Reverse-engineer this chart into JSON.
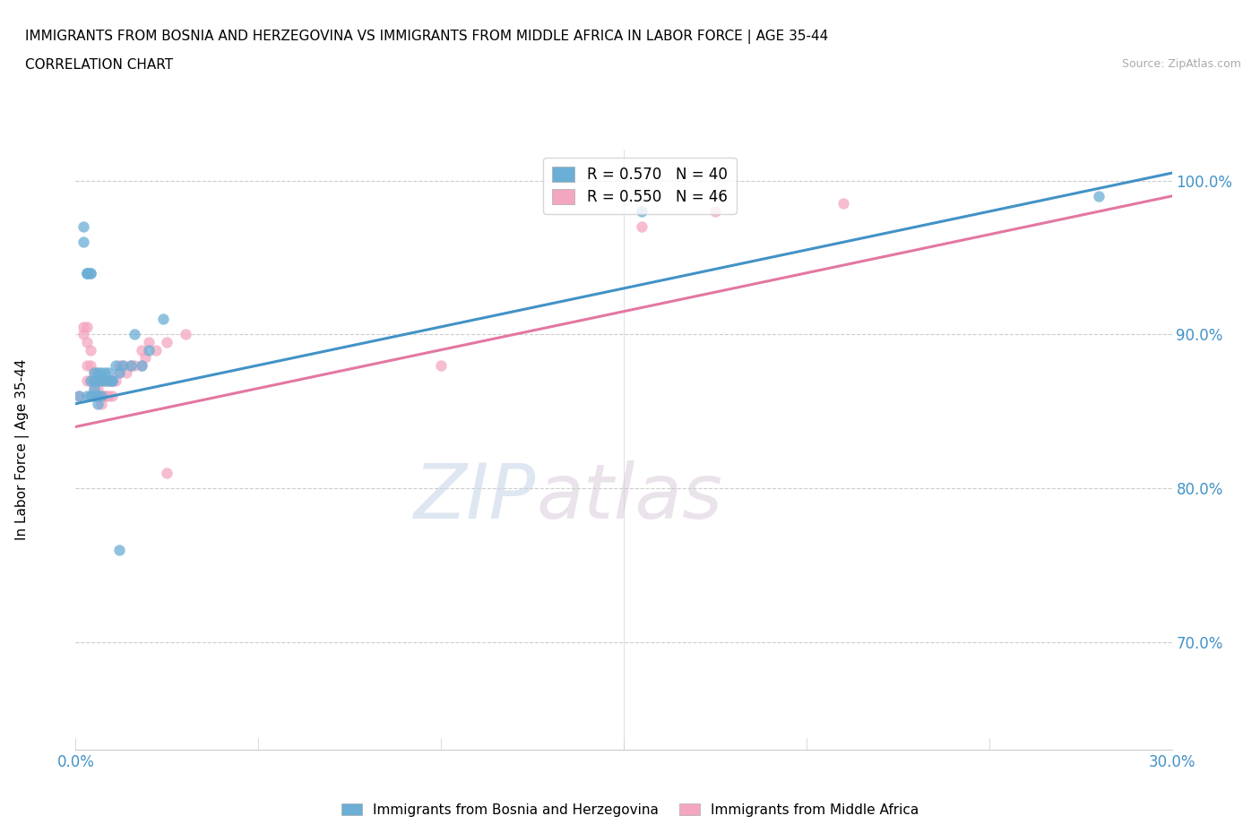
{
  "title_line1": "IMMIGRANTS FROM BOSNIA AND HERZEGOVINA VS IMMIGRANTS FROM MIDDLE AFRICA IN LABOR FORCE | AGE 35-44",
  "title_line2": "CORRELATION CHART",
  "source_text": "Source: ZipAtlas.com",
  "ylabel": "In Labor Force | Age 35-44",
  "xlim": [
    0.0,
    0.3
  ],
  "ylim": [
    0.63,
    1.02
  ],
  "xtick_labels": [
    "0.0%",
    "",
    "",
    "",
    "",
    "",
    "30.0%"
  ],
  "xtick_vals": [
    0.0,
    0.05,
    0.1,
    0.15,
    0.2,
    0.25,
    0.3
  ],
  "ytick_labels": [
    "70.0%",
    "80.0%",
    "90.0%",
    "100.0%"
  ],
  "ytick_vals": [
    0.7,
    0.8,
    0.9,
    1.0
  ],
  "color_bosnia": "#6baed6",
  "color_africa": "#f4a6c0",
  "trendline_color_bosnia": "#4292c6",
  "trendline_color_africa": "#e377a2",
  "R_bosnia": 0.57,
  "N_bosnia": 40,
  "R_africa": 0.55,
  "N_africa": 46,
  "watermark_zip": "ZIP",
  "watermark_atlas": "atlas",
  "bosnia_x": [
    0.001,
    0.002,
    0.002,
    0.003,
    0.003,
    0.003,
    0.004,
    0.004,
    0.004,
    0.005,
    0.005,
    0.005,
    0.006,
    0.006,
    0.006,
    0.007,
    0.007,
    0.008,
    0.008,
    0.009,
    0.01,
    0.01,
    0.011,
    0.012,
    0.013,
    0.015,
    0.016,
    0.018,
    0.02,
    0.024,
    0.003,
    0.004,
    0.005,
    0.006,
    0.007,
    0.009,
    0.012,
    0.135,
    0.155,
    0.28
  ],
  "bosnia_y": [
    0.86,
    0.97,
    0.96,
    0.94,
    0.94,
    0.94,
    0.94,
    0.94,
    0.87,
    0.875,
    0.87,
    0.86,
    0.875,
    0.87,
    0.86,
    0.875,
    0.87,
    0.875,
    0.87,
    0.875,
    0.87,
    0.87,
    0.88,
    0.875,
    0.88,
    0.88,
    0.9,
    0.88,
    0.89,
    0.91,
    0.86,
    0.86,
    0.865,
    0.855,
    0.86,
    0.87,
    0.76,
    0.99,
    0.98,
    0.99
  ],
  "africa_x": [
    0.001,
    0.002,
    0.002,
    0.003,
    0.003,
    0.003,
    0.004,
    0.004,
    0.004,
    0.005,
    0.005,
    0.005,
    0.006,
    0.006,
    0.006,
    0.007,
    0.007,
    0.007,
    0.008,
    0.008,
    0.009,
    0.009,
    0.01,
    0.01,
    0.011,
    0.012,
    0.013,
    0.014,
    0.015,
    0.016,
    0.018,
    0.019,
    0.02,
    0.022,
    0.025,
    0.03,
    0.1,
    0.155,
    0.175,
    0.21,
    0.003,
    0.004,
    0.008,
    0.012,
    0.018,
    0.025
  ],
  "africa_y": [
    0.86,
    0.9,
    0.905,
    0.905,
    0.895,
    0.88,
    0.89,
    0.88,
    0.87,
    0.875,
    0.87,
    0.865,
    0.875,
    0.865,
    0.86,
    0.87,
    0.86,
    0.855,
    0.87,
    0.86,
    0.87,
    0.86,
    0.87,
    0.86,
    0.87,
    0.875,
    0.88,
    0.875,
    0.88,
    0.88,
    0.89,
    0.885,
    0.895,
    0.89,
    0.895,
    0.9,
    0.88,
    0.97,
    0.98,
    0.985,
    0.87,
    0.86,
    0.86,
    0.88,
    0.88,
    0.81
  ],
  "trendline_bosnia": [
    0.855,
    1.005
  ],
  "trendline_africa": [
    0.84,
    0.99
  ]
}
